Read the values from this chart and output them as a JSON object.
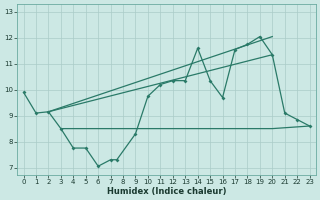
{
  "xlabel": "Humidex (Indice chaleur)",
  "bg_color": "#cce8e4",
  "line_color": "#2a7a68",
  "grid_color": "#aaccc8",
  "xlim": [
    -0.5,
    23.5
  ],
  "ylim": [
    6.7,
    13.3
  ],
  "yticks": [
    7,
    8,
    9,
    10,
    11,
    12,
    13
  ],
  "xticks": [
    0,
    1,
    2,
    3,
    4,
    5,
    6,
    7,
    8,
    9,
    10,
    11,
    12,
    13,
    14,
    15,
    16,
    17,
    18,
    19,
    20,
    21,
    22,
    23
  ],
  "line_zigzag": {
    "x": [
      0,
      1,
      2,
      3,
      4,
      5,
      6,
      7,
      7.5,
      9,
      10,
      11,
      12,
      13,
      14,
      15,
      16,
      17,
      18,
      19,
      20,
      21,
      22,
      23
    ],
    "y": [
      9.9,
      9.1,
      9.15,
      8.5,
      7.75,
      7.75,
      7.05,
      7.3,
      7.3,
      8.3,
      9.75,
      10.2,
      10.35,
      10.35,
      11.6,
      10.35,
      9.7,
      11.55,
      11.75,
      12.05,
      11.35,
      9.1,
      8.85,
      8.6
    ]
  },
  "line_upper_diagonal": {
    "x": [
      2,
      20
    ],
    "y": [
      9.15,
      12.05
    ]
  },
  "line_lower_diagonal": {
    "x": [
      2,
      20
    ],
    "y": [
      9.15,
      11.35
    ]
  },
  "line_flat_bottom": {
    "x": [
      3,
      10,
      20,
      23
    ],
    "y": [
      8.5,
      8.5,
      8.5,
      8.6
    ]
  }
}
